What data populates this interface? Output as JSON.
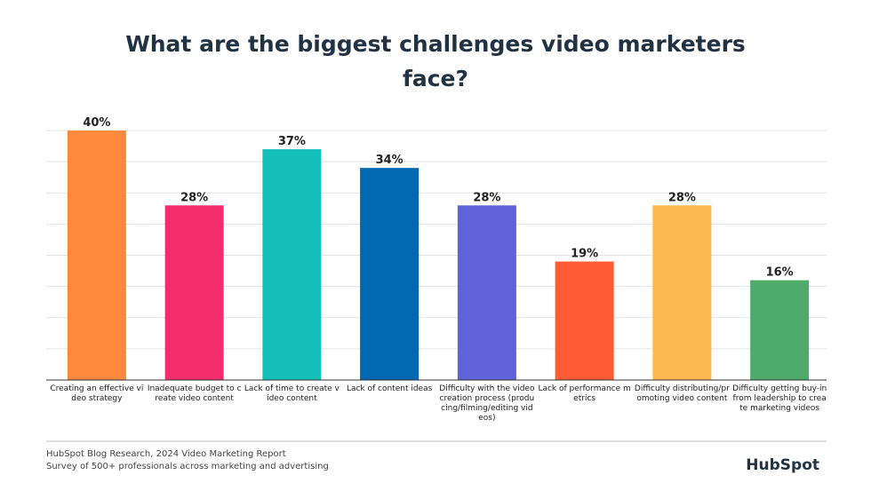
{
  "chart_data": {
    "type": "bar",
    "title": "What are the biggest challenges video marketers face?",
    "categories": [
      "Creating an effective video strategy",
      "Inadequate budget to create video content",
      "Lack of time to create video content",
      "Lack of content ideas",
      "Difficulty with the video creation process (producing/filming/editing videos)",
      "Lack of performance metrics",
      "Difficulty distributing/promoting video content",
      "Difficulty getting buy-in from leadership to create marketing videos"
    ],
    "values": [
      40,
      28,
      37,
      34,
      28,
      19,
      28,
      16
    ],
    "value_labels": [
      "40%",
      "28%",
      "37%",
      "34%",
      "28%",
      "19%",
      "28%",
      "16%"
    ],
    "colors": [
      "#ff8a3d",
      "#f52d6e",
      "#14c0b9",
      "#0067b1",
      "#6062d7",
      "#ff5c35",
      "#fdb74f",
      "#4dab6b"
    ],
    "ylim": [
      0,
      40
    ],
    "grid": true,
    "source": [
      "HubSpot Blog Research, 2024 Video Marketing Report",
      "Survey of 500+ professionals across marketing and advertising"
    ],
    "logo": "HubSpot"
  }
}
